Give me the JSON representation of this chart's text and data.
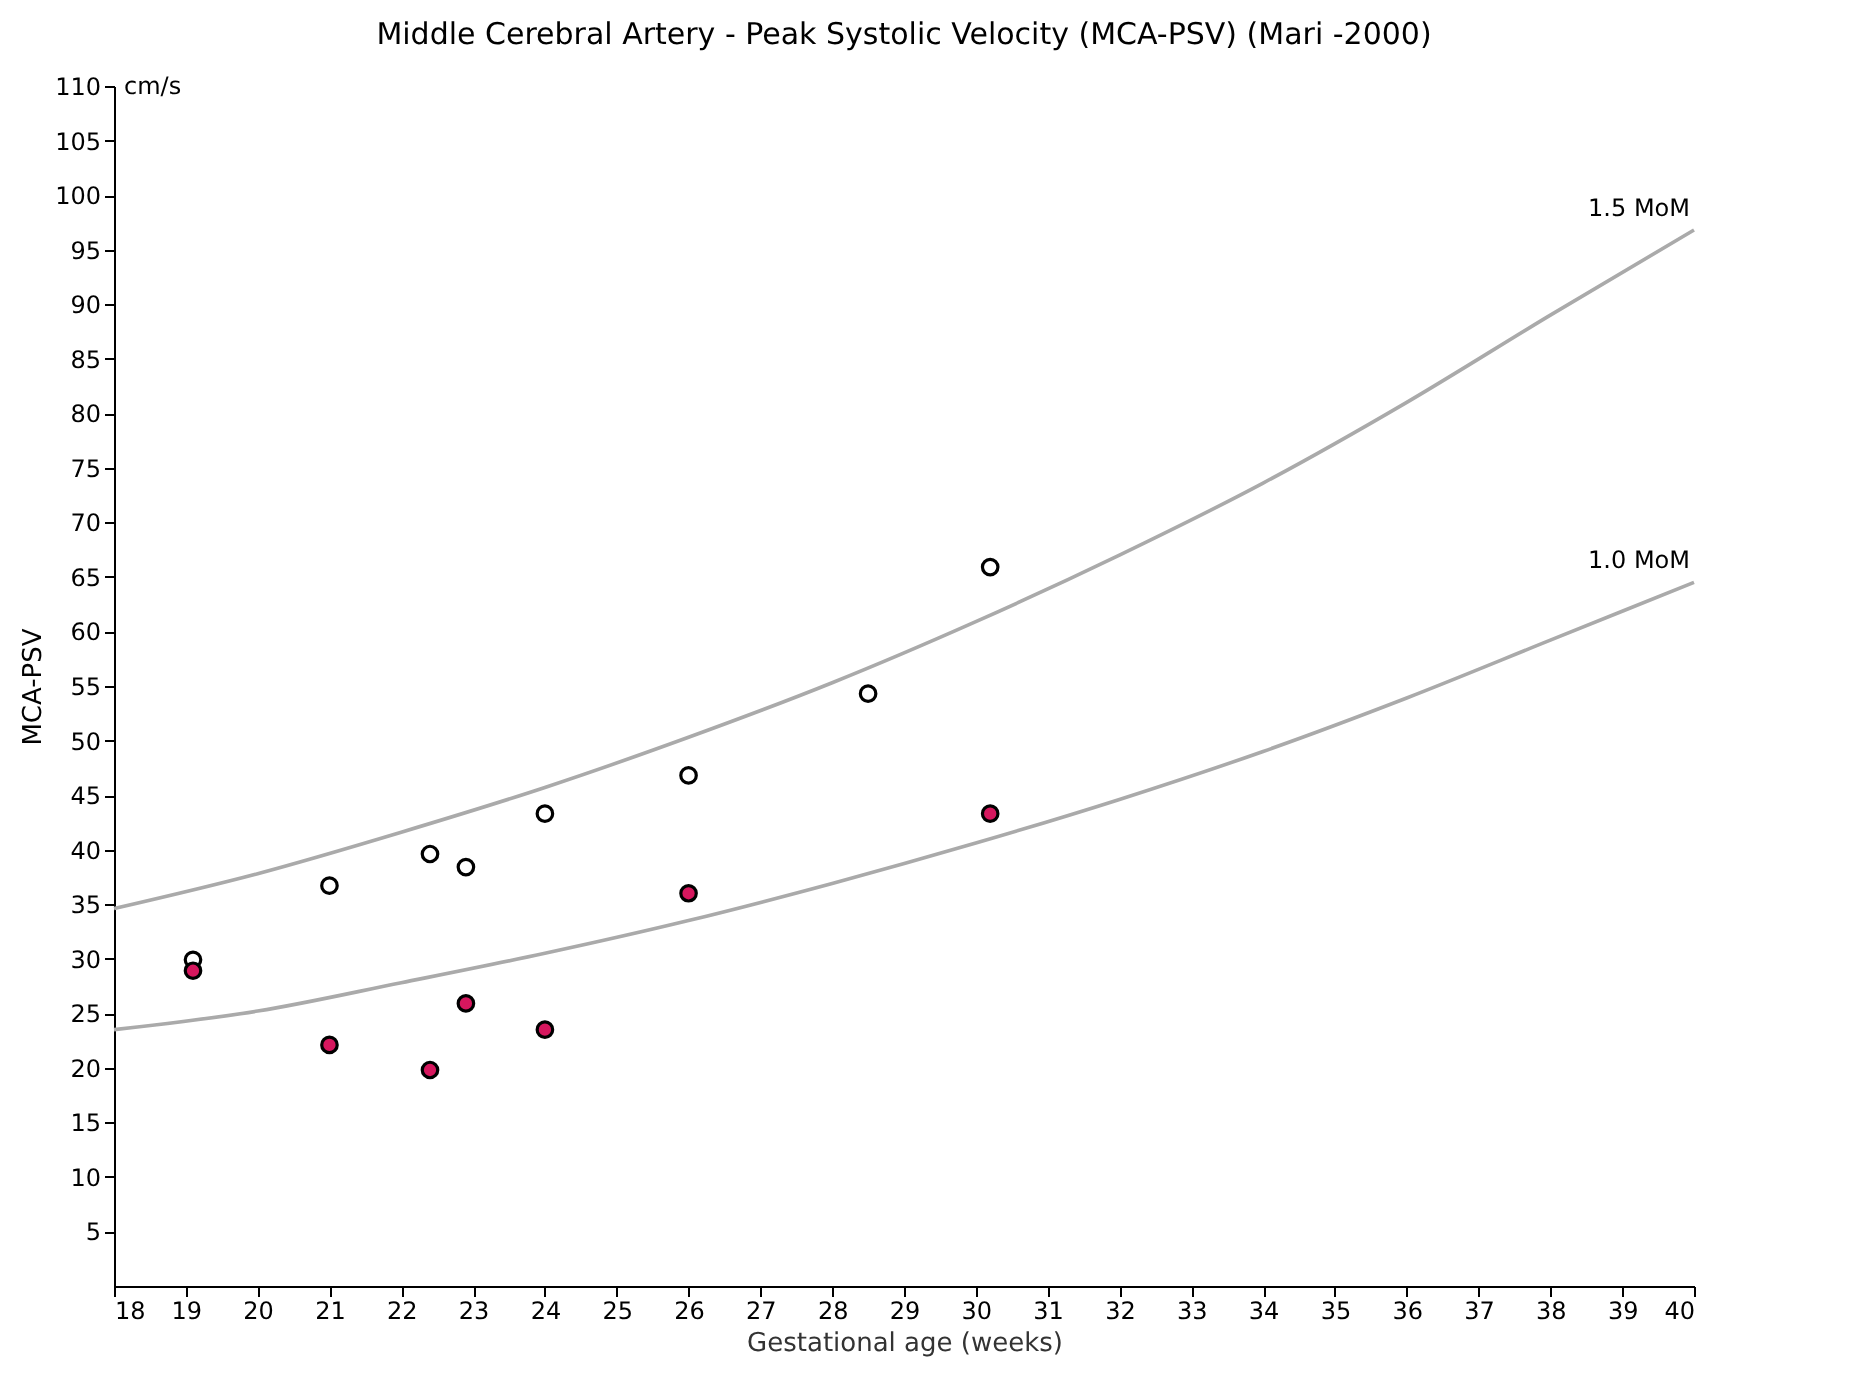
{
  "chart_data": {
    "type": "scatter",
    "title": "Middle Cerebral Artery - Peak Systolic Velocity (MCA-PSV)  (Mari -2000)",
    "xlabel": "Gestational age (weeks)",
    "ylabel": "MCA-PSV",
    "annotations": [
      "cm/s"
    ],
    "xlim": [
      18,
      40
    ],
    "xticks": [
      18,
      19,
      20,
      21,
      22,
      23,
      24,
      25,
      26,
      27,
      28,
      29,
      30,
      31,
      32,
      33,
      34,
      35,
      36,
      37,
      38,
      39,
      40
    ],
    "ylim": [
      0,
      110
    ],
    "yticks": [
      5,
      10,
      15,
      20,
      25,
      30,
      35,
      40,
      45,
      50,
      55,
      60,
      65,
      70,
      75,
      80,
      85,
      90,
      95,
      100,
      105,
      110
    ],
    "grid": false,
    "marker": "circle",
    "series": [
      {
        "name": "1.5 MoM",
        "type": "line",
        "color": "#aaaaaa",
        "marker": "none",
        "x": [
          18,
          20,
          22,
          24,
          26,
          28,
          30,
          32,
          34,
          36,
          38,
          40
        ],
        "values": [
          34.6,
          37.8,
          41.6,
          45.7,
          50.3,
          55.3,
          60.9,
          67.0,
          73.6,
          81.0,
          89.0,
          96.8
        ]
      },
      {
        "name": "1.0 MoM",
        "type": "line",
        "color": "#aaaaaa",
        "marker": "none",
        "x": [
          18,
          20,
          22,
          24,
          26,
          28,
          30,
          32,
          34,
          36,
          38,
          40
        ],
        "values": [
          23.5,
          25.2,
          27.8,
          30.5,
          33.5,
          36.9,
          40.6,
          44.6,
          49.0,
          53.9,
          59.2,
          64.5
        ]
      },
      {
        "color": "#ffffff",
        "x": [
          19.1,
          21,
          22.4,
          22.9,
          24,
          26,
          28.5,
          30.2
        ],
        "values": [
          29.9,
          36.7,
          39.6,
          38.4,
          43.3,
          46.8,
          54.3,
          65.9
        ]
      },
      {
        "color": "#d6175e",
        "x": [
          19.1,
          21,
          22.4,
          22.9,
          24,
          26,
          30.2
        ],
        "values": [
          28.9,
          22.1,
          19.8,
          25.9,
          23.5,
          36.0,
          43.3
        ]
      }
    ]
  }
}
